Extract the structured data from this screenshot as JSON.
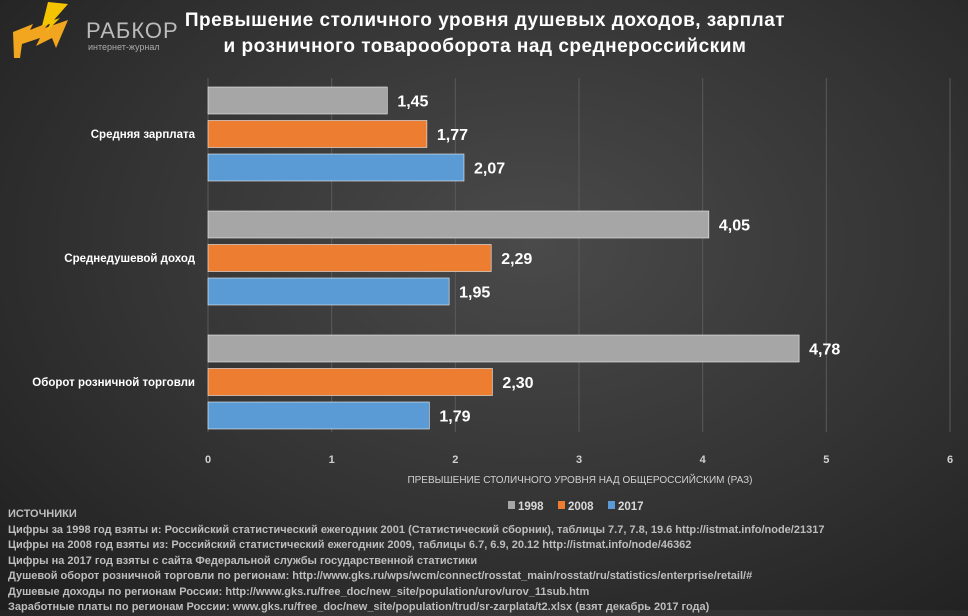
{
  "logo": {
    "brand": "РАБКОР",
    "subtitle": "интернет-журнал"
  },
  "chart_data": {
    "type": "bar",
    "orientation": "horizontal",
    "title": "Превышение столичного уровня душевых доходов, зарплат и розничного товарооборота над среднероссийским",
    "title_lines": [
      "Превышение столичного уровня душевых доходов, зарплат",
      "и розничного товарооборота над среднероссийским"
    ],
    "categories": [
      "Средняя зарплата",
      "Среднедушевой доход",
      "Оборот розничной торговли"
    ],
    "series": [
      {
        "name": "1998",
        "color": "#a6a6a6",
        "values": [
          1.45,
          4.05,
          4.78
        ],
        "labels": [
          "1,45",
          "4,05",
          "4,78"
        ]
      },
      {
        "name": "2008",
        "color": "#ed7d31",
        "values": [
          1.77,
          2.29,
          2.3
        ],
        "labels": [
          "1,77",
          "2,29",
          "2,30"
        ]
      },
      {
        "name": "2017",
        "color": "#5b9bd5",
        "values": [
          2.07,
          1.95,
          1.79
        ],
        "labels": [
          "2,07",
          "1,95",
          "1,79"
        ]
      }
    ],
    "xlabel": "ПРЕВЫШЕНИЕ СТОЛИЧНОГО УРОВНЯ НАД ОБЩЕРОССИЙСКИМ (РАЗ)",
    "xlim": [
      0,
      6
    ],
    "xticks": [
      "0",
      "1",
      "2",
      "3",
      "4",
      "5",
      "6"
    ],
    "grid": true,
    "legend": "bottom"
  },
  "sources": {
    "heading": "ИСТОЧНИКИ",
    "lines": [
      "Цифры за 1998 год взяты и: Российский статистический ежегодник 2001 (Статистический сборник), таблицы 7.7, 7.8, 19.6 http://istmat.info/node/21317",
      "Цифры на 2008 год взяты из: Российский статистический ежегодник 2009, таблицы 6.7, 6.9, 20.12 http://istmat.info/node/46362",
      "Цифры на 2017 год взяты с сайта Федеральной службы государственной статистики",
      "Душевой оборот розничной торговли по регионам: http://www.gks.ru/wps/wcm/connect/rosstat_main/rosstat/ru/statistics/enterprise/retail/#",
      "Душевые доходы по регионам России: http://www.gks.ru/free_doc/new_site/population/urov/urov_11sub.htm",
      "Заработные платы по регионам России: www.gks.ru/free_doc/new_site/population/trud/sr-zarplata/t2.xlsx (взят декабрь 2017 года)"
    ]
  }
}
